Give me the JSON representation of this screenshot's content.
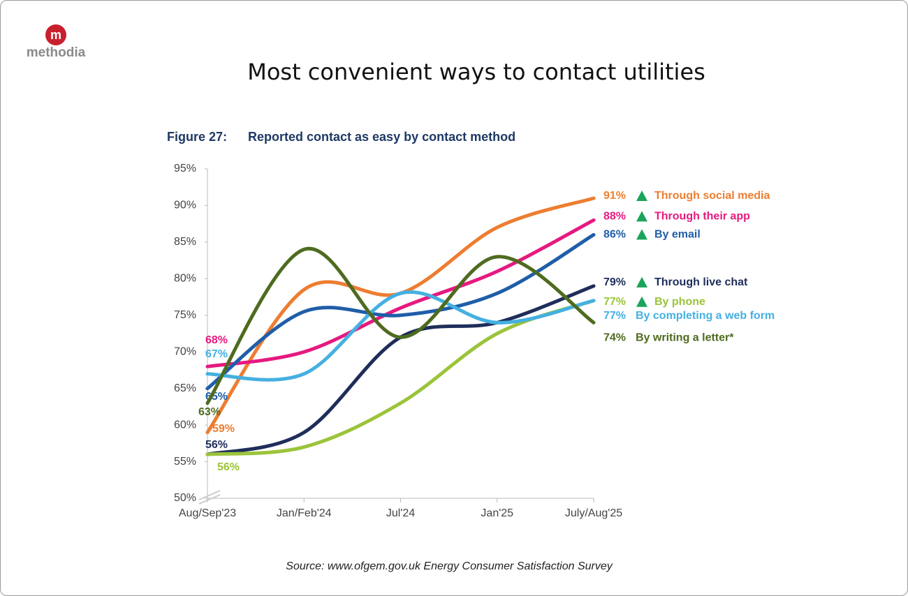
{
  "brand": "methodia",
  "title": "Most convenient ways to contact utilities",
  "source": "Source: www.ofgem.gov.uk Energy Consumer Satisfaction Survey",
  "chart_data": {
    "type": "line",
    "figure_label": "Figure 27:",
    "title": "Reported contact as easy by contact method",
    "categories": [
      "Aug/Sep'23",
      "Jan/Feb'24",
      "Jul'24",
      "Jan'25",
      "July/Aug'25"
    ],
    "ylim": [
      50,
      95
    ],
    "yticks": [
      {
        "value": 50,
        "label": "50%"
      },
      {
        "value": 55,
        "label": "55%"
      },
      {
        "value": 60,
        "label": "60%"
      },
      {
        "value": 65,
        "label": "65%"
      },
      {
        "value": 70,
        "label": "70%"
      },
      {
        "value": 75,
        "label": "75%"
      },
      {
        "value": 80,
        "label": "80%"
      },
      {
        "value": 85,
        "label": "85%"
      },
      {
        "value": 90,
        "label": "90%"
      },
      {
        "value": 95,
        "label": "95%"
      }
    ],
    "smooth": true,
    "series": [
      {
        "name": "Through social media",
        "color": "#ed7d31",
        "values": [
          59,
          78.5,
          78,
          87,
          91
        ],
        "value_labels": [
          "59%",
          null,
          null,
          null,
          "91%"
        ],
        "increase": true
      },
      {
        "name": "Through their app",
        "color": "#e6197f",
        "values": [
          68,
          70,
          76,
          81,
          88
        ],
        "value_labels": [
          "68%",
          null,
          null,
          null,
          "88%"
        ],
        "increase": true
      },
      {
        "name": "By email",
        "color": "#1f5ea8",
        "values": [
          65,
          75.5,
          75,
          78,
          86
        ],
        "value_labels": [
          "65%",
          null,
          null,
          null,
          "86%"
        ],
        "increase": true
      },
      {
        "name": "Through live chat",
        "color": "#1f2d5a",
        "values": [
          56,
          59,
          72,
          74,
          79
        ],
        "value_labels": [
          "56%",
          null,
          null,
          null,
          "79%"
        ],
        "increase": true
      },
      {
        "name": "By phone",
        "color": "#9bc43a",
        "values": [
          56,
          57,
          63,
          72.5,
          77
        ],
        "value_labels": [
          "56%",
          null,
          null,
          null,
          "77%"
        ],
        "increase": true
      },
      {
        "name": "By completing a web form",
        "color": "#45b0e1",
        "values": [
          67,
          67,
          78,
          74,
          77
        ],
        "value_labels": [
          "67%",
          null,
          null,
          null,
          "77%"
        ],
        "increase": false
      },
      {
        "name": "By writing a letter*",
        "color": "#4e6b1f",
        "values": [
          63,
          84,
          72,
          83,
          74
        ],
        "value_labels": [
          "63%",
          null,
          null,
          null,
          "74%"
        ],
        "increase": false
      }
    ]
  }
}
